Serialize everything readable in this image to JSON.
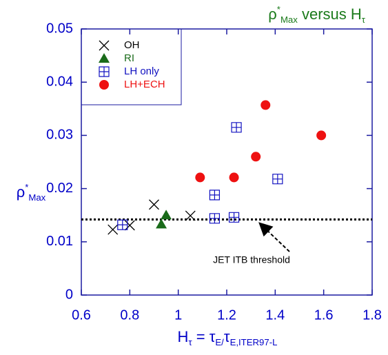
{
  "chart_data": {
    "type": "scatter",
    "title": [
      {
        "text": "ρ"
      },
      {
        "text": "*",
        "style": "sup"
      },
      {
        "text": "Max",
        "style": "sub"
      },
      {
        "text": " versus H"
      },
      {
        "text": "τ",
        "style": "sub"
      }
    ],
    "x_label": [
      {
        "text": "H"
      },
      {
        "text": "τ",
        "style": "sub"
      },
      {
        "text": " = τ"
      },
      {
        "text": "E/",
        "style": "sub"
      },
      {
        "text": "τ"
      },
      {
        "text": "E,ITER97-L",
        "style": "sub"
      }
    ],
    "y_label": [
      {
        "text": "ρ"
      },
      {
        "text": "*",
        "style": "sup"
      },
      {
        "text": "Max",
        "style": "sub"
      }
    ],
    "xlim": [
      0.6,
      1.8
    ],
    "xticks": [
      0.6,
      0.8,
      1,
      1.2,
      1.4,
      1.6,
      1.8
    ],
    "ylim": [
      0,
      0.05
    ],
    "yticks": [
      0,
      0.01,
      0.02,
      0.03,
      0.04,
      0.05
    ],
    "grid": false,
    "legend": "upper left",
    "threshold": {
      "value": 0.0142,
      "label": "JET ITB threshold"
    },
    "series": [
      {
        "name": "OH",
        "color": "#000000",
        "marker": "x",
        "x": [
          0.73,
          0.8,
          0.9,
          1.05
        ],
        "values": [
          0.0123,
          0.0131,
          0.017,
          0.0149
        ]
      },
      {
        "name": "RI",
        "color": "#1a6b1a",
        "marker": "triangle",
        "x": [
          0.93,
          0.95
        ],
        "values": [
          0.0133,
          0.015
        ]
      },
      {
        "name": "LH only",
        "color": "#1010c0",
        "marker": "boxplus",
        "x": [
          0.77,
          1.15,
          1.15,
          1.23,
          1.24,
          1.41
        ],
        "values": [
          0.0132,
          0.0144,
          0.0188,
          0.0146,
          0.0315,
          0.0218
        ]
      },
      {
        "name": "LH+ECH",
        "color": "#ee1111",
        "marker": "circle",
        "x": [
          1.09,
          1.23,
          1.32,
          1.36,
          1.59
        ],
        "values": [
          0.0221,
          0.0221,
          0.026,
          0.0357,
          0.03
        ]
      }
    ]
  }
}
